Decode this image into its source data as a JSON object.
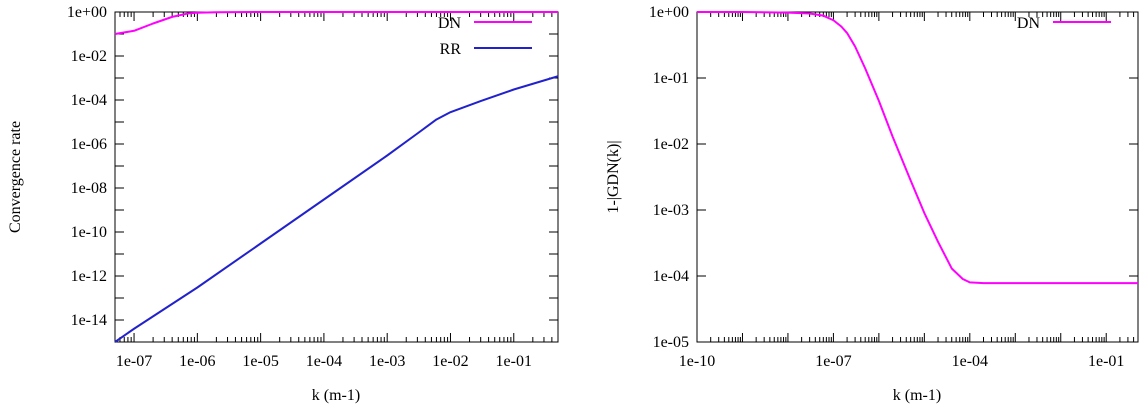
{
  "chart_data": [
    {
      "type": "line",
      "log_x": true,
      "log_y": true,
      "xlabel": "k (m-1)",
      "ylabel": "Convergence rate",
      "xlim": [
        5e-08,
        0.5
      ],
      "ylim": [
        1e-15,
        1
      ],
      "x_ticks": [
        1e-07,
        1e-06,
        1e-05,
        0.0001,
        0.001,
        0.01,
        0.1
      ],
      "x_tick_labels": [
        "1e-07",
        "1e-06",
        "1e-05",
        "1e-04",
        "1e-03",
        "1e-02",
        "1e-01"
      ],
      "y_ticks": [
        1e-14,
        1e-12,
        1e-10,
        1e-08,
        1e-06,
        0.0001,
        0.01,
        1
      ],
      "y_tick_labels": [
        "1e-14",
        "1e-12",
        "1e-10",
        "1e-08",
        "1e-06",
        "1e-04",
        "1e-02",
        "1e+00"
      ],
      "grid": false,
      "legend_position": "top-right",
      "series": [
        {
          "name": "DN",
          "color": "#ff00ff",
          "x": [
            5e-08,
            1e-07,
            2e-07,
            4e-07,
            7e-07,
            1e-06,
            2e-06,
            1e-05,
            0.0001,
            0.001,
            0.01,
            0.1,
            0.5
          ],
          "y": [
            0.1,
            0.14,
            0.3,
            0.6,
            0.85,
            0.93,
            0.98,
            1,
            1,
            1,
            1,
            1,
            1
          ]
        },
        {
          "name": "RR",
          "color": "#2222cc",
          "x": [
            5e-08,
            1e-07,
            1e-06,
            1e-05,
            0.0001,
            0.001,
            0.003,
            0.006,
            0.01,
            0.03,
            0.1,
            0.5
          ],
          "y": [
            1e-15,
            4e-15,
            3e-13,
            3e-11,
            3e-09,
            3e-07,
            3e-06,
            1.3e-05,
            2.8e-05,
            9e-05,
            0.0003,
            0.0012
          ]
        }
      ]
    },
    {
      "type": "line",
      "log_x": true,
      "log_y": true,
      "xlabel": "k (m-1)",
      "ylabel": "1-|GDN(k)|",
      "xlim": [
        1e-10,
        0.5
      ],
      "ylim": [
        1e-05,
        1
      ],
      "x_ticks": [
        1e-10,
        1e-07,
        0.0001,
        0.1
      ],
      "x_tick_labels": [
        "1e-10",
        "1e-07",
        "1e-04",
        "1e-01"
      ],
      "y_ticks": [
        1e-05,
        0.0001,
        0.001,
        0.01,
        0.1,
        1
      ],
      "y_tick_labels": [
        "1e-05",
        "1e-04",
        "1e-03",
        "1e-02",
        "1e-01",
        "1e+00"
      ],
      "grid": false,
      "legend_position": "top-right",
      "series": [
        {
          "name": "DN",
          "color": "#ff00ff",
          "x": [
            1e-10,
            1e-09,
            1e-08,
            3e-08,
            6e-08,
            1e-07,
            1.5e-07,
            2e-07,
            3e-07,
            5e-07,
            1e-06,
            2e-06,
            5e-06,
            1e-05,
            2e-05,
            4e-05,
            7e-05,
            0.0001,
            0.0002,
            0.0005,
            0.001,
            0.01,
            0.1,
            0.5
          ],
          "y": [
            1,
            1,
            0.98,
            0.95,
            0.88,
            0.75,
            0.6,
            0.48,
            0.3,
            0.14,
            0.045,
            0.013,
            0.0028,
            0.0009,
            0.00033,
            0.00013,
            9e-05,
            8e-05,
            7.8e-05,
            7.8e-05,
            7.8e-05,
            7.8e-05,
            7.8e-05,
            7.8e-05
          ]
        }
      ]
    }
  ]
}
